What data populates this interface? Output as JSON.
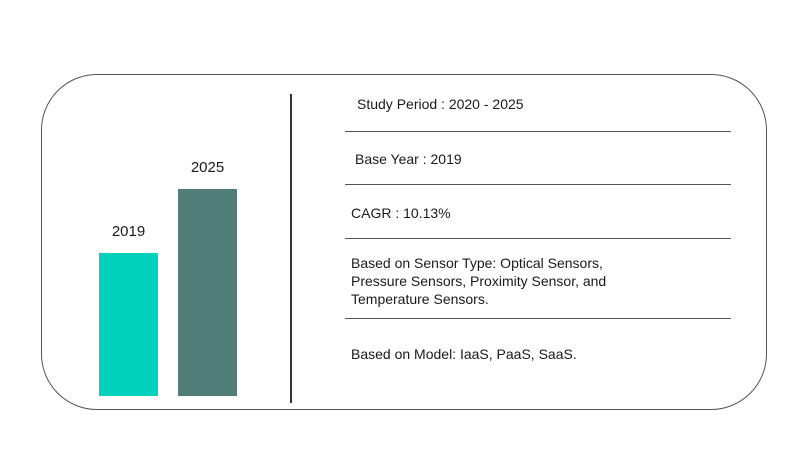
{
  "chart_data": {
    "type": "bar",
    "categories": [
      "2019",
      "2025"
    ],
    "colors": [
      "#00d1bd",
      "#517d78"
    ]
  },
  "info": {
    "study_period": "Study Period : 2020 - 2025",
    "base_year": "Base Year : 2019",
    "cagr": "CAGR : 10.13%",
    "sensor_type": {
      "line1": "Based on Sensor Type: Optical Sensors,",
      "line2": "Pressure Sensors, Proximity Sensor, and",
      "line3": "Temperature Sensors."
    },
    "model": "Based on Model: IaaS, PaaS, SaaS."
  }
}
